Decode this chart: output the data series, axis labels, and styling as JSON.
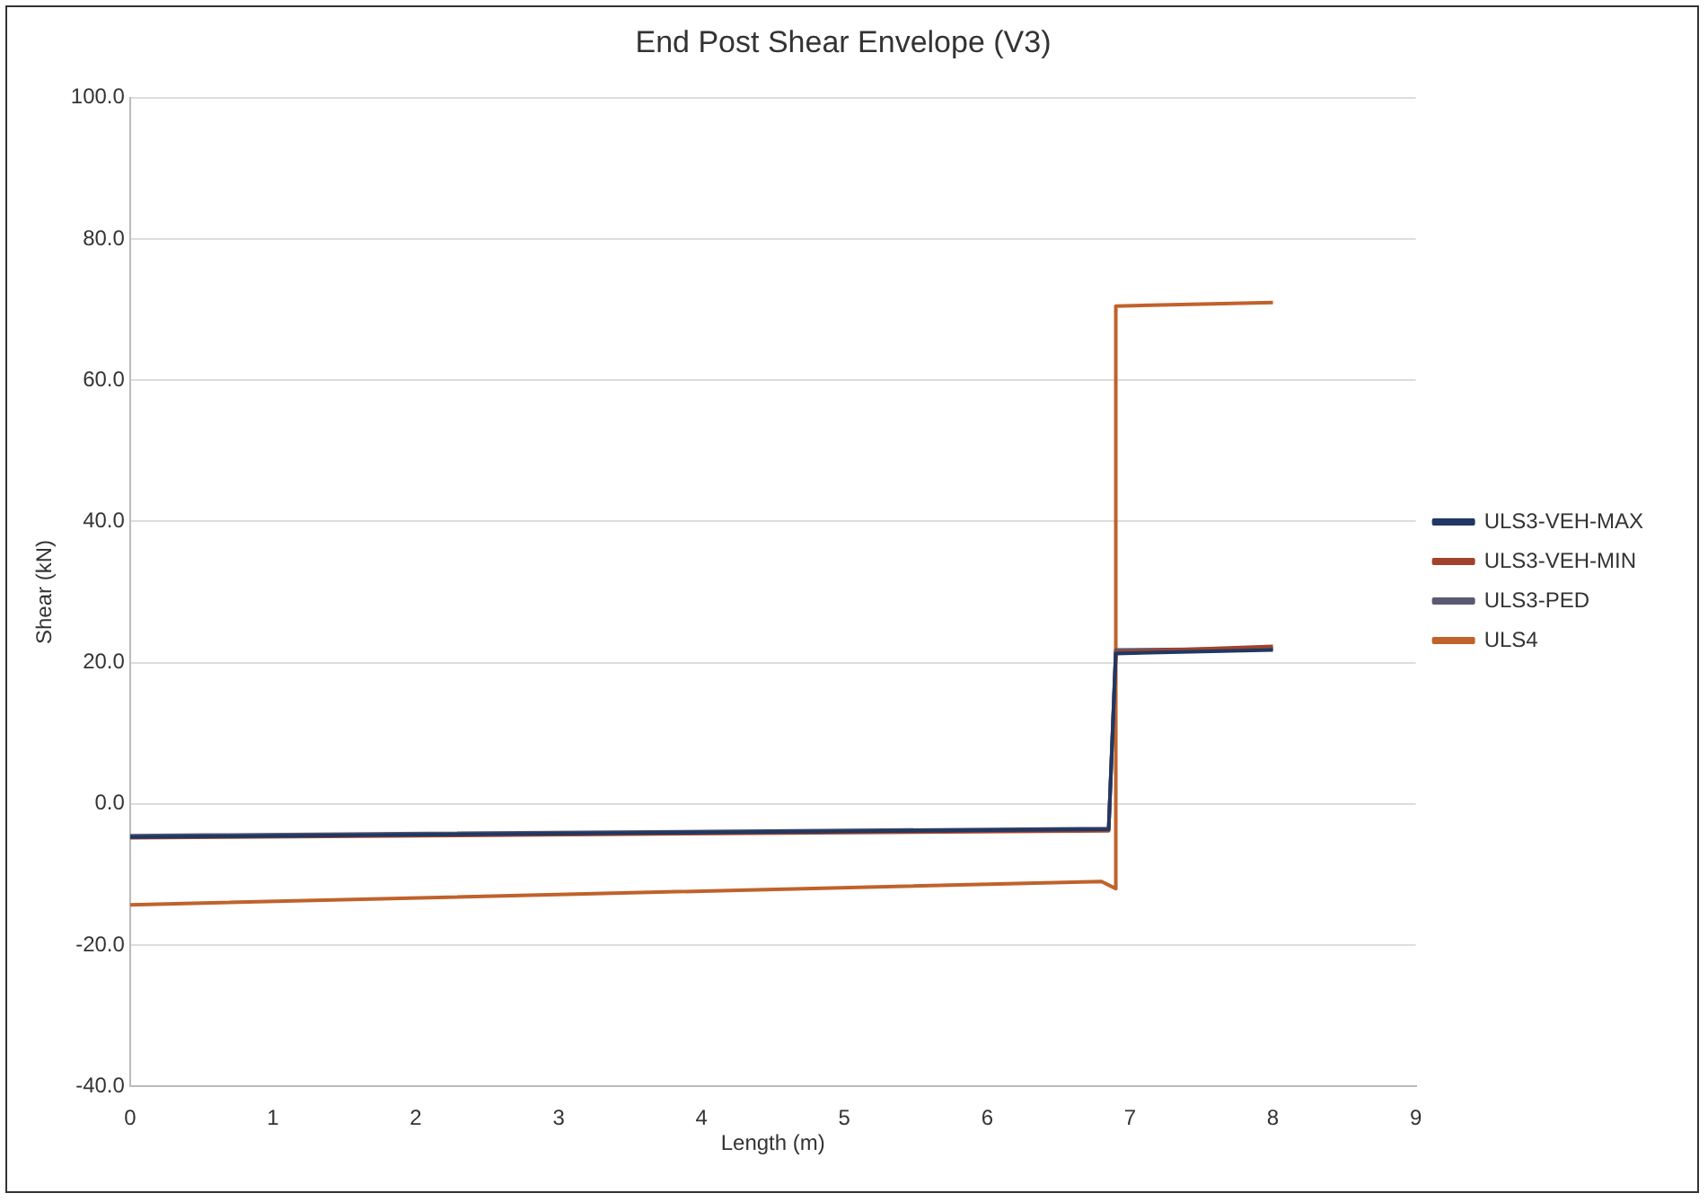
{
  "chart_data": {
    "type": "line",
    "title": "End Post Shear Envelope (V3)",
    "xlabel": "Length (m)",
    "ylabel": "Shear (kN)",
    "xlim": [
      0,
      9
    ],
    "xticks": [
      0,
      1,
      2,
      3,
      4,
      5,
      6,
      7,
      8,
      9
    ],
    "ylim": [
      -40,
      100
    ],
    "yticks": [
      {
        "value": -40,
        "label": "-40.0"
      },
      {
        "value": -20,
        "label": "-20.0"
      },
      {
        "value": 0,
        "label": "0.0"
      },
      {
        "value": 20,
        "label": "20.0"
      },
      {
        "value": 40,
        "label": "40.0"
      },
      {
        "value": 60,
        "label": "60.0"
      },
      {
        "value": 80,
        "label": "80.0"
      },
      {
        "value": 100,
        "label": "100.0"
      }
    ],
    "grid": "y",
    "legend": "right",
    "marker": "none",
    "series": [
      {
        "name": "ULS3-VEH-MAX",
        "color": "#1f3864",
        "x": [
          0,
          6.85,
          6.9,
          8
        ],
        "values": [
          -4.7,
          -3.6,
          21.3,
          21.8
        ]
      },
      {
        "name": "ULS3-VEH-MIN",
        "color": "#a0432a",
        "x": [
          0,
          6.85,
          6.9,
          8
        ],
        "values": [
          -4.8,
          -3.8,
          21.5,
          22.3
        ]
      },
      {
        "name": "ULS3-PED",
        "color": "#595971",
        "x": [
          0,
          6.85,
          6.9,
          8
        ],
        "values": [
          -4.5,
          -3.5,
          21.8,
          22
        ]
      },
      {
        "name": "ULS4",
        "color": "#c0622b",
        "x": [
          0,
          6.8,
          6.9,
          6.9,
          8
        ],
        "values": [
          -14.3,
          -11,
          -12,
          70.5,
          71
        ]
      }
    ]
  }
}
